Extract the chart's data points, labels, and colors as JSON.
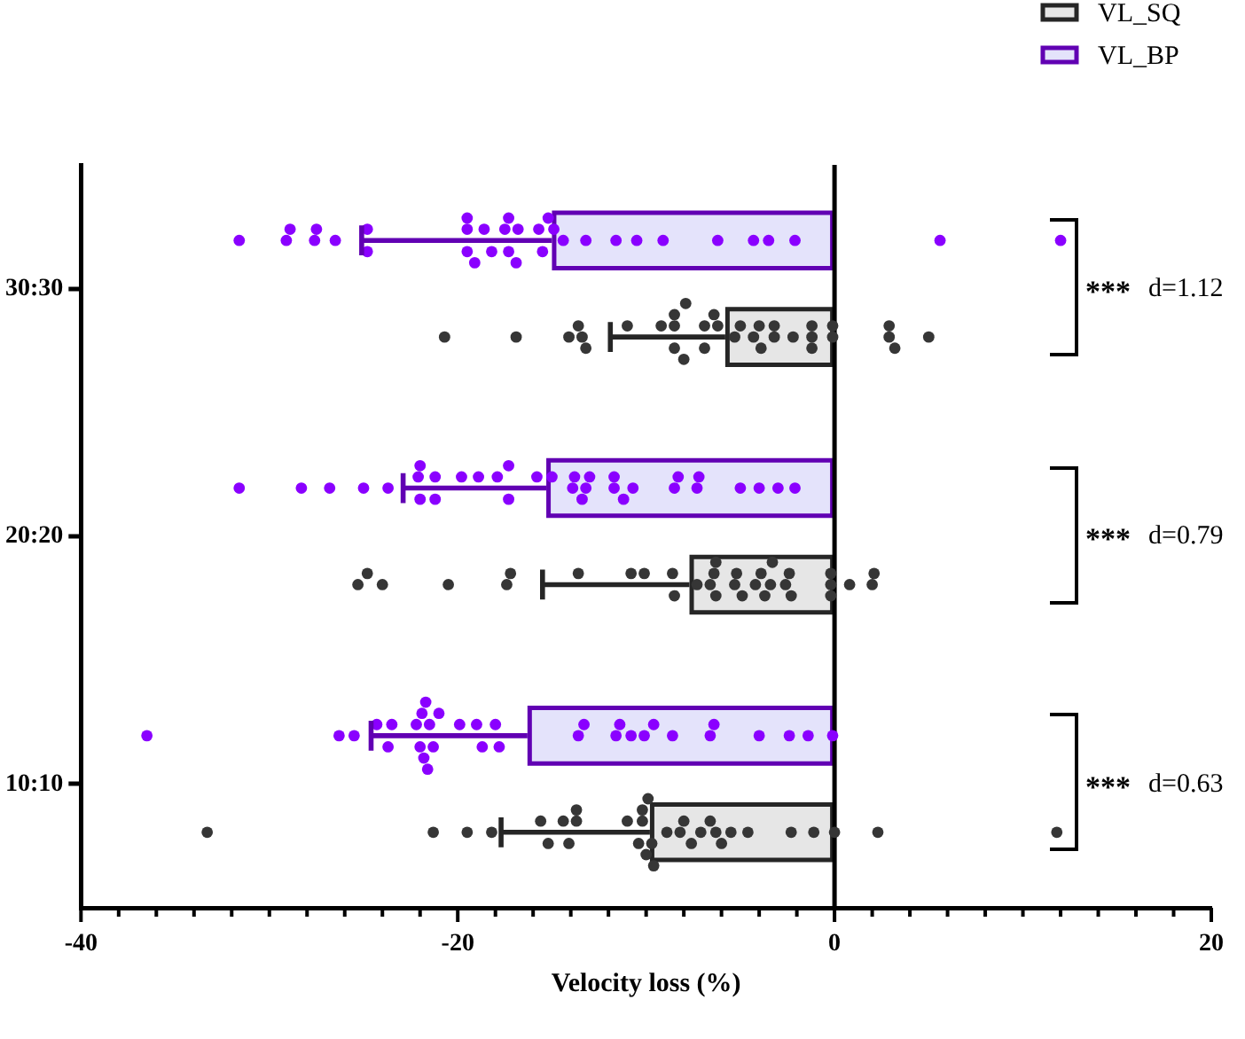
{
  "chart_data": {
    "type": "bar",
    "orientation": "horizontal",
    "xlabel": "Velocity loss (%)",
    "categories": [
      "30:30",
      "20:20",
      "10:10"
    ],
    "xlim": [
      -40,
      20
    ],
    "xticks": [
      -40,
      {
        "value": -38,
        "label": null
      },
      {
        "value": -36,
        "label": null
      },
      {
        "value": -34,
        "label": null
      },
      {
        "value": -32,
        "label": null
      },
      {
        "value": -30,
        "label": null
      },
      {
        "value": -28,
        "label": null
      },
      {
        "value": -26,
        "label": null
      },
      {
        "value": -24,
        "label": null
      },
      {
        "value": -22,
        "label": null
      },
      -20,
      {
        "value": -18,
        "label": null
      },
      {
        "value": -16,
        "label": null
      },
      {
        "value": -14,
        "label": null
      },
      {
        "value": -12,
        "label": null
      },
      {
        "value": -10,
        "label": null
      },
      {
        "value": -8,
        "label": null
      },
      {
        "value": -6,
        "label": null
      },
      {
        "value": -4,
        "label": null
      },
      {
        "value": -2,
        "label": null
      },
      0,
      {
        "value": 2,
        "label": null
      },
      {
        "value": 4,
        "label": null
      },
      {
        "value": 6,
        "label": null
      },
      {
        "value": 8,
        "label": null
      },
      {
        "value": 10,
        "label": null
      },
      {
        "value": 12,
        "label": null
      },
      {
        "value": 14,
        "label": null
      },
      {
        "value": 16,
        "label": null
      },
      {
        "value": 18,
        "label": null
      },
      20
    ],
    "legend": "top right",
    "marker": "circle",
    "ref_lines": [
      {
        "axis": "x",
        "value": 0,
        "color": "#000000"
      }
    ],
    "annotations": [
      "***",
      "d=1.12",
      "***",
      "d=0.79",
      "***",
      "d=0.63"
    ],
    "series": [
      {
        "name": "VL_SQ",
        "color": "#e6e6e6",
        "values": [
          -5.8,
          -7.7,
          -9.8
        ],
        "errors": [
          [
            -11.9,
            -5.8
          ],
          [
            -15.5,
            -7.7
          ],
          [
            -17.7,
            -9.8
          ]
        ]
      },
      {
        "name": "VL_BP",
        "color": "#e4e3fb",
        "values": [
          -15.0,
          -15.3,
          -16.3
        ],
        "errors": [
          [
            -25.1,
            -15.0
          ],
          [
            -22.9,
            -15.3
          ],
          [
            -24.6,
            -16.3
          ]
        ]
      },
      {
        "type": "scatter",
        "color": "#363636",
        "x": [
          "30:30",
          "30:30",
          "30:30",
          "30:30",
          "30:30",
          "30:30",
          "30:30",
          "30:30",
          "30:30",
          "30:30",
          "30:30",
          "30:30",
          "30:30",
          "30:30",
          "30:30",
          "30:30",
          "30:30",
          "30:30",
          "30:30",
          "30:30",
          "30:30",
          "30:30",
          "30:30",
          "30:30",
          "30:30",
          "30:30",
          "30:30",
          "30:30",
          "30:30",
          "30:30",
          "30:30",
          "30:30",
          "30:30",
          "30:30",
          "20:20",
          "20:20",
          "20:20",
          "20:20",
          "20:20",
          "20:20",
          "20:20",
          "20:20",
          "20:20",
          "20:20",
          "20:20",
          "20:20",
          "20:20",
          "20:20",
          "20:20",
          "20:20",
          "20:20",
          "20:20",
          "20:20",
          "20:20",
          "20:20",
          "20:20",
          "20:20",
          "20:20",
          "20:20",
          "20:20",
          "20:20",
          "20:20",
          "20:20",
          "20:20",
          "20:20",
          "20:20",
          "20:20",
          "10:10",
          "10:10",
          "10:10",
          "10:10",
          "10:10",
          "10:10",
          "10:10",
          "10:10",
          "10:10",
          "10:10",
          "10:10",
          "10:10",
          "10:10",
          "10:10",
          "10:10",
          "10:10",
          "10:10",
          "10:10",
          "10:10",
          "10:10",
          "10:10",
          "10:10",
          "10:10",
          "10:10",
          "10:10",
          "10:10",
          "10:10",
          "10:10",
          "10:10",
          "10:10",
          "10:10",
          "10:10",
          "10:10"
        ],
        "values": [
          -20.7,
          -16.9,
          -14.1,
          -13.6,
          -13.4,
          -13.2,
          -11.0,
          -9.2,
          -8.5,
          -8.5,
          -8.5,
          -8.0,
          -7.9,
          -6.9,
          -6.9,
          -6.4,
          -6.2,
          -5.3,
          -5.0,
          -4.3,
          -4.0,
          -3.9,
          -3.2,
          -3.2,
          -2.2,
          -1.2,
          -1.2,
          -1.2,
          -0.1,
          -0.1,
          2.9,
          2.9,
          3.2,
          5.0,
          -25.3,
          -24.8,
          -24.0,
          -20.5,
          -17.4,
          -17.2,
          -13.6,
          -10.8,
          -10.1,
          -8.6,
          -8.5,
          -7.3,
          -6.6,
          -6.4,
          -6.3,
          -6.3,
          -5.3,
          -5.2,
          -4.9,
          -4.2,
          -3.9,
          -3.7,
          -3.4,
          -3.3,
          -2.6,
          -2.4,
          -2.3,
          -0.2,
          -0.2,
          -0.2,
          0.8,
          2.0,
          2.1,
          -33.3,
          -21.3,
          -19.5,
          -18.2,
          -15.6,
          -15.2,
          -14.4,
          -14.1,
          -13.7,
          -13.7,
          -11.0,
          -10.4,
          -10.2,
          -10.2,
          -10.0,
          -9.9,
          -9.7,
          -9.6,
          -8.9,
          -8.2,
          -8.0,
          -7.6,
          -7.1,
          -6.6,
          -6.3,
          -6.0,
          -5.5,
          -4.6,
          -2.3,
          -1.1,
          0.0,
          2.3,
          11.8
        ]
      },
      {
        "type": "scatter",
        "color": "#8a00ff",
        "x": [
          "30:30",
          "30:30",
          "30:30",
          "30:30",
          "30:30",
          "30:30",
          "30:30",
          "30:30",
          "30:30",
          "30:30",
          "30:30",
          "30:30",
          "30:30",
          "30:30",
          "30:30",
          "30:30",
          "30:30",
          "30:30",
          "30:30",
          "30:30",
          "30:30",
          "30:30",
          "30:30",
          "30:30",
          "30:30",
          "30:30",
          "30:30",
          "30:30",
          "30:30",
          "30:30",
          "30:30",
          "30:30",
          "30:30",
          "30:30",
          "20:20",
          "20:20",
          "20:20",
          "20:20",
          "20:20",
          "20:20",
          "20:20",
          "20:20",
          "20:20",
          "20:20",
          "20:20",
          "20:20",
          "20:20",
          "20:20",
          "20:20",
          "20:20",
          "20:20",
          "20:20",
          "20:20",
          "20:20",
          "20:20",
          "20:20",
          "20:20",
          "20:20",
          "20:20",
          "20:20",
          "20:20",
          "20:20",
          "20:20",
          "20:20",
          "20:20",
          "20:20",
          "20:20",
          "20:20",
          "10:10",
          "10:10",
          "10:10",
          "10:10",
          "10:10",
          "10:10",
          "10:10",
          "10:10",
          "10:10",
          "10:10",
          "10:10",
          "10:10",
          "10:10",
          "10:10",
          "10:10",
          "10:10",
          "10:10",
          "10:10",
          "10:10",
          "10:10",
          "10:10",
          "10:10",
          "10:10",
          "10:10",
          "10:10",
          "10:10",
          "10:10",
          "10:10",
          "10:10",
          "10:10",
          "10:10",
          "10:10",
          "10:10",
          "10:10"
        ],
        "values": [
          -31.6,
          -29.1,
          -28.9,
          -27.6,
          -27.5,
          -26.5,
          -24.8,
          -24.8,
          -19.5,
          -19.5,
          -19.5,
          -19.1,
          -18.6,
          -18.2,
          -17.5,
          -17.3,
          -17.3,
          -16.9,
          -16.8,
          -15.7,
          -15.5,
          -15.2,
          -14.9,
          -14.4,
          -13.2,
          -11.6,
          -10.5,
          -9.1,
          -6.2,
          -4.3,
          -3.5,
          -2.1,
          5.6,
          12.0,
          -31.6,
          -28.3,
          -26.8,
          -25.0,
          -23.7,
          -22.1,
          -22.0,
          -22.0,
          -21.2,
          -21.2,
          -19.8,
          -18.9,
          -17.9,
          -17.3,
          -17.3,
          -15.8,
          -15.0,
          -13.9,
          -13.8,
          -13.4,
          -13.2,
          -13.0,
          -11.7,
          -11.7,
          -11.2,
          -10.7,
          -8.5,
          -8.3,
          -7.3,
          -7.2,
          -5.0,
          -4.0,
          -3.0,
          -2.1,
          -36.5,
          -26.3,
          -25.5,
          -24.3,
          -23.7,
          -23.5,
          -22.2,
          -22.0,
          -21.9,
          -21.8,
          -21.7,
          -21.6,
          -21.5,
          -21.3,
          -21.0,
          -19.9,
          -19.0,
          -18.7,
          -18.0,
          -17.8,
          -13.6,
          -13.3,
          -11.6,
          -11.4,
          -10.8,
          -10.1,
          -9.6,
          -8.6,
          -6.6,
          -6.4,
          -4.0,
          -2.4,
          -1.4,
          -0.1
        ]
      }
    ]
  }
}
